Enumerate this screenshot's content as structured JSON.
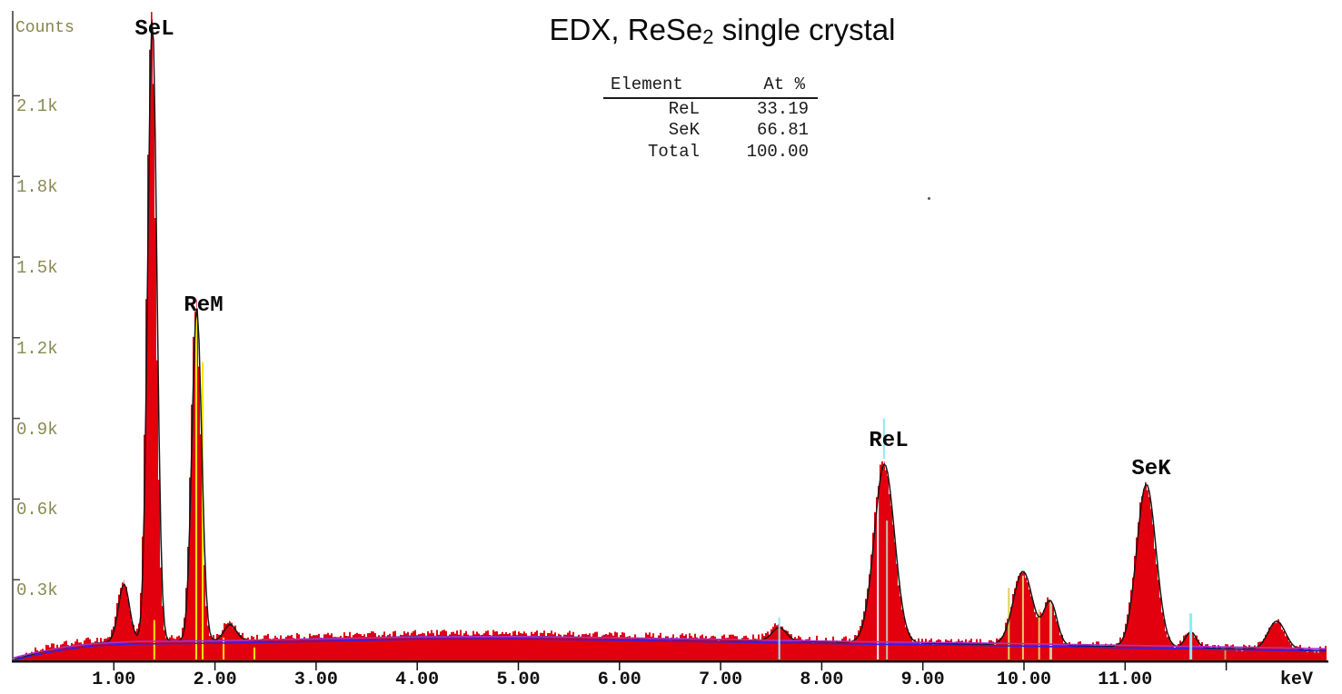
{
  "title": {
    "pre": "EDX, ReSe",
    "sub": "2",
    "post": " single crystal"
  },
  "composition_table": {
    "headers": [
      "Element",
      "At %"
    ],
    "rows": [
      [
        "ReL",
        "33.19"
      ],
      [
        "SeK",
        "66.81"
      ],
      [
        "Total",
        "100.00"
      ]
    ]
  },
  "axis": {
    "y_label": "Counts",
    "x_unit": "keV"
  },
  "chart_data": {
    "type": "area",
    "title": "EDX, ReSe2 single crystal",
    "xlabel": "keV",
    "ylabel": "Counts",
    "xlim": [
      0,
      13
    ],
    "ylim": [
      0,
      2410
    ],
    "grid": false,
    "x_ticks": [
      {
        "value": 1,
        "label": "1.00"
      },
      {
        "value": 2,
        "label": "2.00"
      },
      {
        "value": 3,
        "label": "3.00"
      },
      {
        "value": 4,
        "label": "4.00"
      },
      {
        "value": 5,
        "label": "5.00"
      },
      {
        "value": 6,
        "label": "6.00"
      },
      {
        "value": 7,
        "label": "7.00"
      },
      {
        "value": 8,
        "label": "8.00"
      },
      {
        "value": 9,
        "label": "9.00"
      },
      {
        "value": 10,
        "label": "10.00"
      },
      {
        "value": 11,
        "label": "11.00"
      },
      {
        "value": 12,
        "label": ""
      }
    ],
    "y_ticks": [
      {
        "value": 300,
        "label": "0.3k"
      },
      {
        "value": 600,
        "label": "0.6k"
      },
      {
        "value": 900,
        "label": "0.9k"
      },
      {
        "value": 1200,
        "label": "1.2k"
      },
      {
        "value": 1500,
        "label": "1.5k"
      },
      {
        "value": 1800,
        "label": "1.8k"
      },
      {
        "value": 2100,
        "label": "2.1k"
      }
    ],
    "peaks": [
      {
        "label": "SeL",
        "keV": 1.38,
        "counts": 2400,
        "sigma": 0.045
      },
      {
        "label": "ReM",
        "keV": 1.82,
        "counts": 1320,
        "sigma": 0.048
      },
      {
        "label": "ReL",
        "keV": 8.62,
        "counts": 735,
        "sigma": 0.1
      },
      {
        "label": "SeK",
        "keV": 11.21,
        "counts": 658,
        "sigma": 0.095
      },
      {
        "label": null,
        "keV": 1.1,
        "counts": 292,
        "sigma": 0.055
      },
      {
        "label": null,
        "keV": 2.15,
        "counts": 140,
        "sigma": 0.06
      },
      {
        "label": null,
        "keV": 7.58,
        "counts": 128,
        "sigma": 0.07
      },
      {
        "label": null,
        "keV": 9.99,
        "counts": 335,
        "sigma": 0.095
      },
      {
        "label": null,
        "keV": 10.26,
        "counts": 222,
        "sigma": 0.065
      },
      {
        "label": null,
        "keV": 11.65,
        "counts": 108,
        "sigma": 0.055
      },
      {
        "label": null,
        "keV": 12.5,
        "counts": 148,
        "sigma": 0.085
      }
    ],
    "background_points": [
      [
        0,
        0
      ],
      [
        0.2,
        18
      ],
      [
        0.5,
        40
      ],
      [
        0.8,
        54
      ],
      [
        1.2,
        61
      ],
      [
        2,
        64
      ],
      [
        3,
        71
      ],
      [
        4,
        79
      ],
      [
        5,
        80
      ],
      [
        5.8,
        76
      ],
      [
        6.5,
        72
      ],
      [
        7.5,
        66
      ],
      [
        8.5,
        60
      ],
      [
        9.5,
        56
      ],
      [
        10.5,
        50
      ],
      [
        11.5,
        44
      ],
      [
        12.5,
        38
      ],
      [
        13,
        34
      ]
    ],
    "noise_floor_points": [
      [
        0,
        2
      ],
      [
        0.3,
        14
      ],
      [
        0.6,
        16
      ],
      [
        1,
        20
      ],
      [
        1.6,
        16
      ],
      [
        2.5,
        15
      ],
      [
        3.5,
        18
      ],
      [
        5,
        18
      ],
      [
        6,
        16
      ],
      [
        7,
        14
      ],
      [
        8,
        12
      ],
      [
        9,
        10
      ],
      [
        10,
        8
      ],
      [
        11,
        6
      ],
      [
        12,
        5
      ],
      [
        13,
        4
      ]
    ],
    "marker_lines": [
      {
        "keV": 1.4,
        "color": "#ffe400",
        "top": 150,
        "bottom": 0,
        "w": 2,
        "layer": "back"
      },
      {
        "keV": 1.815,
        "color": "#ffe400",
        "top": 1280,
        "bottom": 0,
        "w": 2,
        "layer": "back"
      },
      {
        "keV": 1.878,
        "color": "#ffe400",
        "top": 1110,
        "bottom": 0,
        "w": 2,
        "layer": "back"
      },
      {
        "keV": 2.085,
        "color": "#ffe400",
        "top": 85,
        "bottom": 0,
        "w": 2,
        "layer": "back"
      },
      {
        "keV": 2.39,
        "color": "#ffe400",
        "top": 48,
        "bottom": 0,
        "w": 2,
        "layer": "back"
      },
      {
        "keV": 8.555,
        "color": "#f2f2f2",
        "top": 600,
        "bottom": 0,
        "w": 2,
        "layer": "back"
      },
      {
        "keV": 8.645,
        "color": "#c0c0c0",
        "top": 520,
        "bottom": 0,
        "w": 2,
        "layer": "back"
      },
      {
        "keV": 9.85,
        "color": "#e0d060",
        "top": 270,
        "bottom": 0,
        "w": 2,
        "layer": "back"
      },
      {
        "keV": 9.99,
        "color": "#e0d060",
        "top": 315,
        "bottom": 0,
        "w": 2,
        "layer": "back"
      },
      {
        "keV": 10.15,
        "color": "#e0d060",
        "top": 190,
        "bottom": 0,
        "w": 2,
        "layer": "back"
      },
      {
        "keV": 10.265,
        "color": "#c9c9a0",
        "top": 215,
        "bottom": 0,
        "w": 3,
        "layer": "back"
      },
      {
        "keV": 11.99,
        "color": "#c89858",
        "top": 55,
        "bottom": 0,
        "w": 2,
        "layer": "back"
      },
      {
        "keV": 7.58,
        "color": "#8feaf2",
        "top": 160,
        "bottom": 0,
        "w": 2,
        "layer": "front"
      },
      {
        "keV": 8.615,
        "color": "#8feaf2",
        "top": 900,
        "bottom": 750,
        "w": 2,
        "layer": "front"
      },
      {
        "keV": 11.65,
        "color": "#8feaf2",
        "top": 175,
        "bottom": 0,
        "w": 3,
        "layer": "front"
      }
    ],
    "colors": {
      "spectrum_fill": "#e3000e",
      "fit_curve": "#161616",
      "background_line_blue": "#3020e8",
      "background_line_magenta": "#a832c8",
      "axis": "#111111",
      "y_tick_text": "#8a8a52"
    }
  }
}
